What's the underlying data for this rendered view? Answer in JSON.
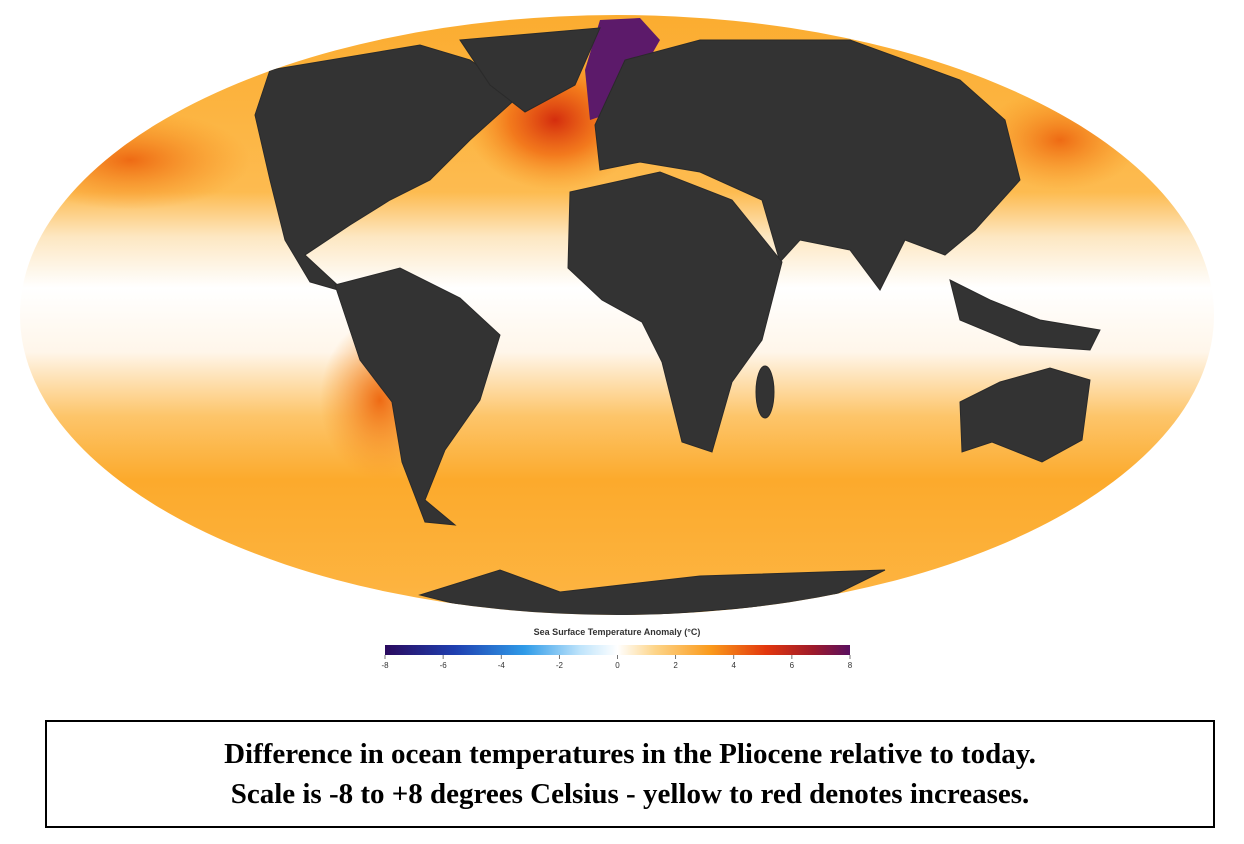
{
  "map": {
    "colorbar": {
      "title": "Sea Surface Temperature Anomaly (°C)",
      "lim": [
        -8,
        8
      ],
      "ticks": [
        -8,
        -6,
        -4,
        -2,
        0,
        2,
        4,
        6,
        8
      ]
    }
  },
  "caption": {
    "lines": [
      "Difference in ocean temperatures in the Pliocene relative to today.",
      "Scale is -8 to +8 degrees Celsius - yellow to red denotes increases."
    ]
  }
}
